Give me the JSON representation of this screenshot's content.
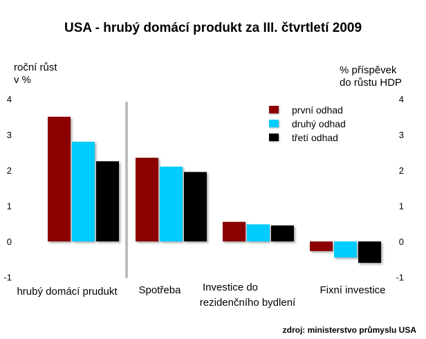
{
  "chart_data": {
    "type": "bar",
    "title": "USA - hrubý domácí produkt za III. čtvrtletí 2009",
    "ylabel_left": [
      "roční růst",
      "v %"
    ],
    "ylabel_right": [
      "% příspěvek",
      "do růstu HDP"
    ],
    "source": "zdroj: ministerstvo průmyslu USA",
    "ylim": [
      -1,
      4
    ],
    "yticks": [
      4,
      3,
      2,
      1,
      0,
      -1
    ],
    "grid": false,
    "legend_position": "top-right",
    "categories": [
      [
        "hrubý domácí prudukt"
      ],
      [
        "Spotřeba"
      ],
      [
        "Investice do",
        "rezidenčního bydlení"
      ],
      [
        "Fixní investice"
      ]
    ],
    "series": [
      {
        "name": "první odhad",
        "color": "#8b0000",
        "values": [
          3.5,
          2.35,
          0.55,
          -0.27
        ]
      },
      {
        "name": "druhý odhad",
        "color": "#00ccff",
        "values": [
          2.8,
          2.1,
          0.48,
          -0.45
        ]
      },
      {
        "name": "třetí odhad",
        "color": "#000000",
        "values": [
          2.25,
          1.95,
          0.45,
          -0.6
        ]
      }
    ]
  }
}
